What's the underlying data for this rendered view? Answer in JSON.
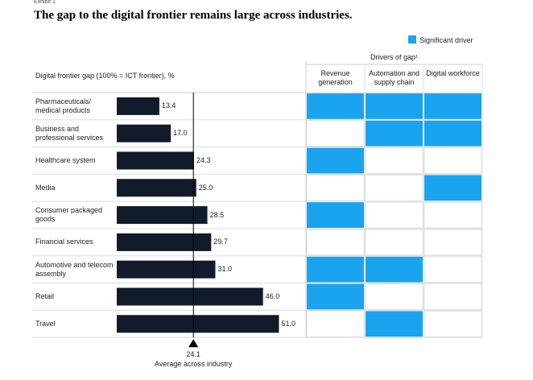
{
  "chart_data": {
    "type": "bar",
    "exhibit": "Exhibit 1",
    "title": "The gap to the digital frontier remains large across industries.",
    "legend": "Significant driver",
    "matrix_title": "Drivers of gap¹",
    "axis_label": "Digital frontier gap (100% = ICT frontier), %",
    "categories": [
      "Pharmaceuticals/ medical products",
      "Business and professional services",
      "Healthcare system",
      "Media",
      "Consumer packaged goods",
      "Financial services",
      "Automotive and telecom assembly",
      "Retail",
      "Travel"
    ],
    "values": [
      13.4,
      17.0,
      24.3,
      25.0,
      28.5,
      29.7,
      31.0,
      46.0,
      51.0
    ],
    "value_labels": [
      "13.4",
      "17.0",
      "24.3",
      "25.0",
      "28.5",
      "29.7",
      "31.0",
      "46.0",
      "51.0"
    ],
    "color": "#111b2b",
    "xlim": [
      0,
      60
    ],
    "average": {
      "value": 24.1,
      "label": "24.1",
      "text": "Average across industry"
    },
    "drivers": {
      "columns": [
        "Revenue generation",
        "Automation and supply chain",
        "Digital workforce"
      ],
      "color": "#1aa3ef",
      "rows": [
        [
          1,
          1,
          1
        ],
        [
          0,
          1,
          1
        ],
        [
          1,
          0,
          0
        ],
        [
          0,
          0,
          1
        ],
        [
          1,
          0,
          0
        ],
        [
          0,
          0,
          0
        ],
        [
          1,
          1,
          0
        ],
        [
          1,
          0,
          0
        ],
        [
          0,
          1,
          0
        ]
      ]
    }
  }
}
